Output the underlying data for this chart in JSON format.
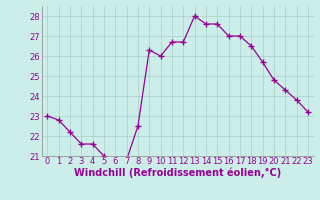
{
  "x": [
    0,
    1,
    2,
    3,
    4,
    5,
    6,
    7,
    8,
    9,
    10,
    11,
    12,
    13,
    14,
    15,
    16,
    17,
    18,
    19,
    20,
    21,
    22,
    23
  ],
  "y": [
    23.0,
    22.8,
    22.2,
    21.6,
    21.6,
    21.0,
    20.8,
    20.8,
    22.5,
    26.3,
    26.0,
    26.7,
    26.7,
    28.0,
    27.6,
    27.6,
    27.0,
    27.0,
    26.5,
    25.7,
    24.8,
    24.3,
    23.8,
    23.2
  ],
  "line_color": "#990099",
  "marker": "+",
  "marker_size": 4,
  "bg_color": "#cceee8",
  "grid_color": "#aacccc",
  "xlabel": "Windchill (Refroidissement éolien,°C)",
  "xlabel_color": "#990099",
  "xlabel_fontsize": 7,
  "tick_color": "#990099",
  "tick_fontsize": 6,
  "ylim": [
    21,
    28.5
  ],
  "yticks": [
    21,
    22,
    23,
    24,
    25,
    26,
    27,
    28
  ],
  "xlim": [
    -0.5,
    23.5
  ],
  "xticks": [
    0,
    1,
    2,
    3,
    4,
    5,
    6,
    7,
    8,
    9,
    10,
    11,
    12,
    13,
    14,
    15,
    16,
    17,
    18,
    19,
    20,
    21,
    22,
    23
  ],
  "spine_color": "#888888"
}
